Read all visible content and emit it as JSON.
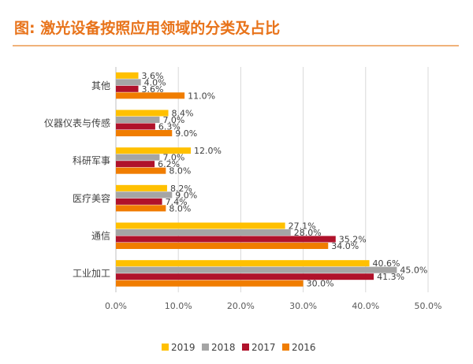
{
  "chart_data": {
    "type": "bar",
    "orientation": "horizontal",
    "title": "图: 激光设备按照应用领域的分类及占比",
    "categories": [
      "其他",
      "仪器仪表与传感",
      "科研军事",
      "医疗美容",
      "通信",
      "工业加工"
    ],
    "series": [
      {
        "name": "2019",
        "color": "#FFC000",
        "values": [
          3.6,
          8.4,
          12.0,
          8.2,
          27.1,
          40.6
        ]
      },
      {
        "name": "2018",
        "color": "#A5A5A5",
        "values": [
          4.0,
          7.0,
          7.0,
          9.0,
          28.0,
          45.0
        ]
      },
      {
        "name": "2017",
        "color": "#B0122B",
        "values": [
          3.6,
          6.3,
          6.2,
          7.4,
          35.2,
          41.3
        ]
      },
      {
        "name": "2016",
        "color": "#F07D00",
        "values": [
          11.0,
          9.0,
          8.0,
          8.0,
          34.0,
          30.0
        ]
      }
    ],
    "xticks": [
      "0.0%",
      "10.0%",
      "20.0%",
      "30.0%",
      "40.0%",
      "50.0%"
    ],
    "xlim": [
      0,
      50
    ],
    "value_suffix": "%",
    "grid": "vertical",
    "legend": "bottom",
    "title_color": "#E8731A"
  }
}
